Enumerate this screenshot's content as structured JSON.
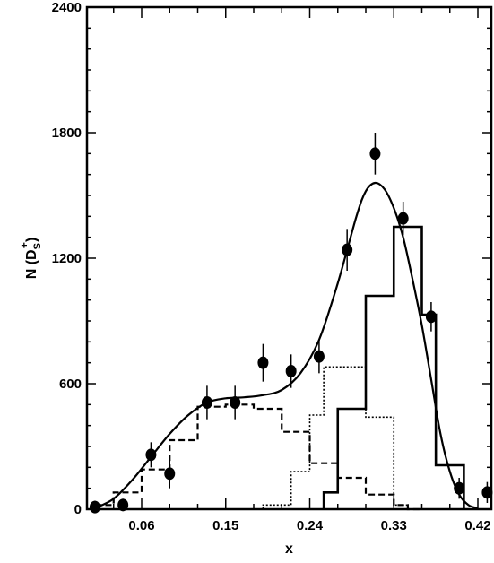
{
  "chart_data": {
    "type": "scatter",
    "xlabel": "x",
    "ylabel": "N (D_S^+)",
    "ylabel_parts": {
      "main": "N (D",
      "sub": "S",
      "sup": "+",
      "close": ")"
    },
    "xlim": [
      0.0,
      0.435
    ],
    "ylim": [
      0,
      2400
    ],
    "x_ticks": [
      0.06,
      0.15,
      0.24,
      0.33,
      0.42
    ],
    "x_tick_labels": [
      "0.06",
      "0.15",
      "0.24",
      "0.33",
      "0.42"
    ],
    "y_ticks": [
      0,
      600,
      1200,
      1800,
      2400
    ],
    "y_tick_labels": [
      "0",
      "600",
      "1200",
      "1800",
      "2400"
    ],
    "grid": false,
    "series": [
      {
        "kind": "points",
        "x": [
          0.01,
          0.04,
          0.07,
          0.09,
          0.13,
          0.16,
          0.19,
          0.22,
          0.25,
          0.28,
          0.31,
          0.34,
          0.37,
          0.4,
          0.43
        ],
        "y": [
          10,
          20,
          260,
          170,
          510,
          510,
          700,
          660,
          730,
          1240,
          1700,
          1390,
          920,
          100,
          80
        ],
        "yerr": [
          30,
          30,
          60,
          70,
          80,
          80,
          90,
          80,
          80,
          100,
          100,
          80,
          70,
          50,
          50
        ]
      },
      {
        "kind": "curve",
        "x": [
          0.01,
          0.03,
          0.05,
          0.07,
          0.09,
          0.11,
          0.13,
          0.15,
          0.17,
          0.19,
          0.21,
          0.23,
          0.25,
          0.27,
          0.29,
          0.3,
          0.31,
          0.32,
          0.33,
          0.34,
          0.35,
          0.36,
          0.37,
          0.38,
          0.39,
          0.4,
          0.41,
          0.42
        ],
        "y": [
          5,
          50,
          140,
          250,
          360,
          450,
          510,
          530,
          535,
          545,
          570,
          650,
          810,
          1080,
          1400,
          1520,
          1560,
          1530,
          1440,
          1300,
          1100,
          880,
          620,
          360,
          180,
          70,
          20,
          5
        ]
      },
      {
        "kind": "histogram-solid",
        "edges": [
          0.255,
          0.27,
          0.285,
          0.3,
          0.315,
          0.33,
          0.345,
          0.36,
          0.375,
          0.39,
          0.405
        ],
        "counts": [
          80,
          480,
          480,
          1020,
          1020,
          1350,
          1350,
          930,
          210,
          210
        ]
      },
      {
        "kind": "histogram-dotted",
        "edges": [
          0.19,
          0.205,
          0.22,
          0.24,
          0.255,
          0.27,
          0.285,
          0.3,
          0.315,
          0.33,
          0.345,
          0.36
        ],
        "counts": [
          20,
          20,
          180,
          450,
          680,
          680,
          680,
          440,
          440,
          20,
          0
        ]
      },
      {
        "kind": "histogram-dashed",
        "edges": [
          0.015,
          0.03,
          0.045,
          0.06,
          0.075,
          0.09,
          0.105,
          0.12,
          0.135,
          0.15,
          0.165,
          0.18,
          0.195,
          0.21,
          0.225,
          0.24,
          0.255,
          0.27,
          0.285,
          0.3,
          0.315,
          0.33,
          0.345,
          0.36
        ],
        "counts": [
          20,
          80,
          80,
          190,
          190,
          330,
          330,
          490,
          490,
          500,
          500,
          480,
          480,
          370,
          370,
          220,
          220,
          150,
          150,
          70,
          70,
          20,
          0
        ]
      }
    ]
  }
}
